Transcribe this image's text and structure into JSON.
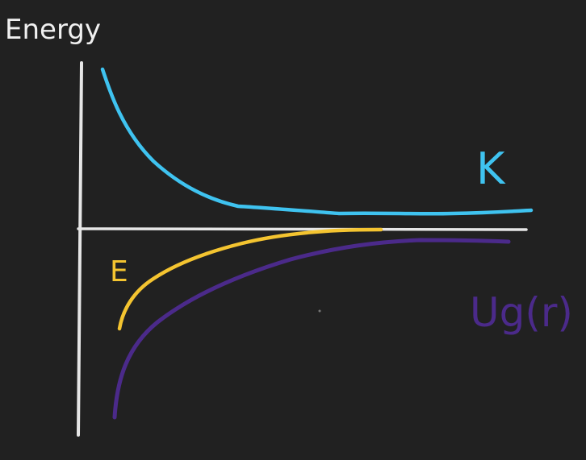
{
  "labels": {
    "y_axis": "Energy",
    "kinetic": "K",
    "total": "E",
    "potential": "Ug(r)"
  },
  "colors": {
    "background": "#212121",
    "axes": "#e6e6e6",
    "kinetic": "#3fc3f0",
    "total": "#f4c430",
    "potential": "#4b2a8a",
    "text": "#f0f0f0"
  }
}
